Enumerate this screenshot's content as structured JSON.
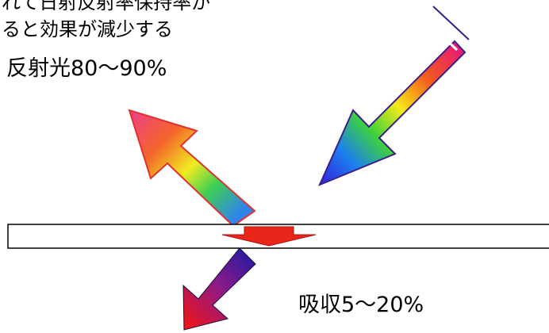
{
  "note": {
    "lines": [
      "れて日射反射率保持率が",
      "ると効果が減少する"
    ]
  },
  "labels": {
    "reflected": "反射光80〜90%",
    "absorbed": "吸収5〜20%"
  },
  "colors": {
    "arrow_outline": "#3a1f8a",
    "reflect_outline": "#e03030",
    "absorb_arrow": "#e8261a",
    "panel_stroke": "#000000"
  }
}
